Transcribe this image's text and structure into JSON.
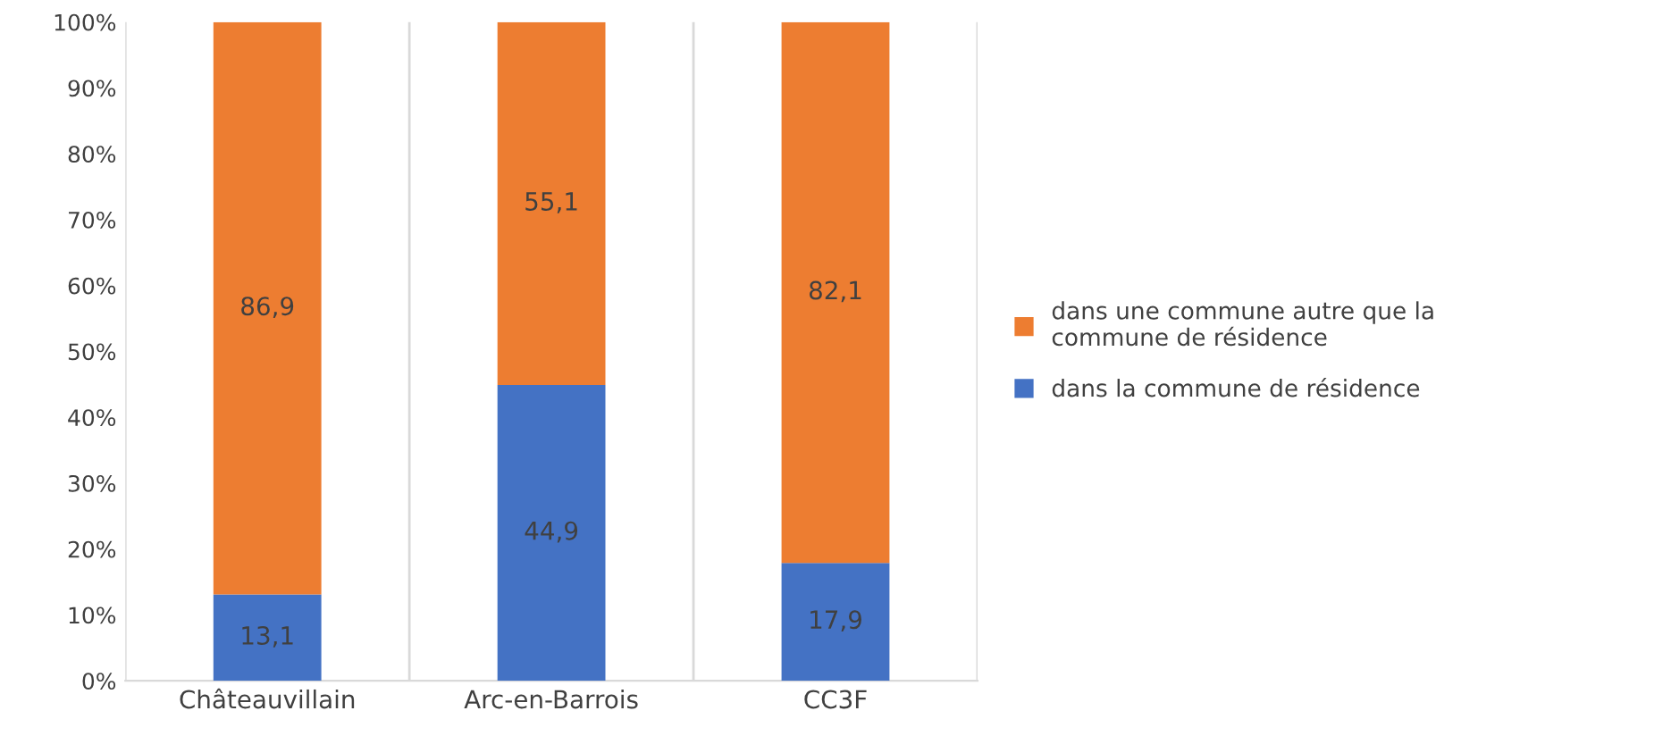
{
  "chart_data": {
    "type": "bar",
    "stacked": true,
    "categories": [
      "Châteauvillain",
      "Arc-en-Barrois",
      "CC3F"
    ],
    "series": [
      {
        "name": "dans la commune de résidence",
        "color": "#4472c4",
        "values": [
          13.1,
          44.9,
          17.9
        ],
        "value_labels": [
          "13,1",
          "44,9",
          "17,9"
        ]
      },
      {
        "name": "dans une commune autre que la commune de résidence",
        "color": "#ed7d31",
        "values": [
          86.9,
          55.1,
          82.1
        ],
        "value_labels": [
          "86,9",
          "55,1",
          "82,1"
        ]
      }
    ],
    "ylim": [
      0,
      100
    ],
    "yticks": [
      {
        "value": 0,
        "label": "0%"
      },
      {
        "value": 10,
        "label": "10%"
      },
      {
        "value": 20,
        "label": "20%"
      },
      {
        "value": 30,
        "label": "30%"
      },
      {
        "value": 40,
        "label": "40%"
      },
      {
        "value": 50,
        "label": "50%"
      },
      {
        "value": 60,
        "label": "60%"
      },
      {
        "value": 70,
        "label": "70%"
      },
      {
        "value": 80,
        "label": "80%"
      },
      {
        "value": 90,
        "label": "90%"
      },
      {
        "value": 100,
        "label": "100%"
      }
    ],
    "grid": "x",
    "legend": "right"
  }
}
